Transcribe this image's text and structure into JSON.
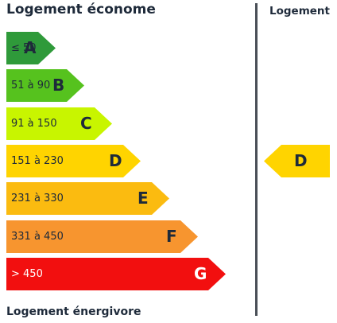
{
  "header": {
    "best_label": "Logement économe",
    "worst_label": "Logement énergivore",
    "current_column_label": "Logement"
  },
  "classes": [
    {
      "letter": "A",
      "range": "≤ 50",
      "color": "#2f9a3a"
    },
    {
      "letter": "B",
      "range": "51 à 90",
      "color": "#56c21e"
    },
    {
      "letter": "C",
      "range": "91 à 150",
      "color": "#c8f500"
    },
    {
      "letter": "D",
      "range": "151 à 230",
      "color": "#ffd400"
    },
    {
      "letter": "E",
      "range": "231 à 330",
      "color": "#fbbb10"
    },
    {
      "letter": "F",
      "range": "331 à 450",
      "color": "#f7952f"
    },
    {
      "letter": "G",
      "range": "> 450",
      "color": "#f20f0f"
    }
  ],
  "current": {
    "letter": "D",
    "color": "#ffd400"
  }
}
